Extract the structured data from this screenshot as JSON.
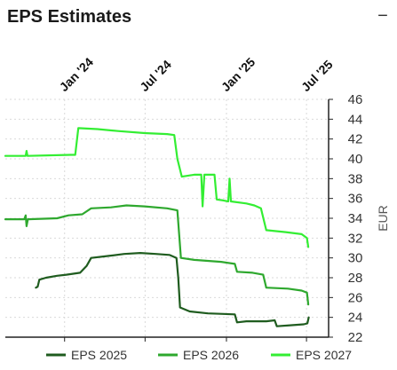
{
  "header": {
    "title": "EPS Estimates",
    "collapse_symbol": "−"
  },
  "chart_data": {
    "type": "line",
    "title": "EPS Estimates",
    "ylabel": "EUR",
    "ylim": [
      22,
      46
    ],
    "yticks": [
      22,
      24,
      26,
      28,
      30,
      32,
      34,
      36,
      38,
      40,
      42,
      44,
      46
    ],
    "x_range": [
      "2023-08-20",
      "2025-08-20"
    ],
    "xticks": [
      {
        "label": "Jan '24",
        "date": "2024-01-01"
      },
      {
        "label": "Jul '24",
        "date": "2024-07-01"
      },
      {
        "label": "Jan '25",
        "date": "2025-01-01"
      },
      {
        "label": "Jul '25",
        "date": "2025-07-01"
      }
    ],
    "grid": true,
    "legend_position": "bottom",
    "series": [
      {
        "name": "EPS 2025",
        "color": "#1f5c1f",
        "points": [
          [
            "2023-10-28",
            27.0
          ],
          [
            "2023-11-01",
            27.1
          ],
          [
            "2023-11-05",
            27.8
          ],
          [
            "2023-11-20",
            28.0
          ],
          [
            "2023-12-15",
            28.2
          ],
          [
            "2024-01-05",
            28.3
          ],
          [
            "2024-02-05",
            28.5
          ],
          [
            "2024-02-20",
            29.2
          ],
          [
            "2024-03-01",
            30.0
          ],
          [
            "2024-04-10",
            30.2
          ],
          [
            "2024-05-15",
            30.4
          ],
          [
            "2024-06-20",
            30.5
          ],
          [
            "2024-07-25",
            30.4
          ],
          [
            "2024-08-25",
            30.3
          ],
          [
            "2024-09-10",
            30.0
          ],
          [
            "2024-09-14",
            28.0
          ],
          [
            "2024-09-18",
            25.0
          ],
          [
            "2024-10-10",
            24.6
          ],
          [
            "2024-11-20",
            24.4
          ],
          [
            "2025-01-20",
            24.3
          ],
          [
            "2025-01-25",
            23.5
          ],
          [
            "2025-02-15",
            23.6
          ],
          [
            "2025-04-01",
            23.6
          ],
          [
            "2025-04-20",
            23.7
          ],
          [
            "2025-04-25",
            23.1
          ],
          [
            "2025-05-25",
            23.2
          ],
          [
            "2025-06-25",
            23.3
          ],
          [
            "2025-07-03",
            23.4
          ],
          [
            "2025-07-06",
            24.0
          ]
        ]
      },
      {
        "name": "EPS 2026",
        "color": "#2ea82e",
        "points": [
          [
            "2023-08-20",
            33.9
          ],
          [
            "2023-10-02",
            33.9
          ],
          [
            "2023-10-05",
            34.3
          ],
          [
            "2023-10-07",
            33.2
          ],
          [
            "2023-10-10",
            33.9
          ],
          [
            "2023-12-15",
            34.0
          ],
          [
            "2024-01-10",
            34.3
          ],
          [
            "2024-02-10",
            34.4
          ],
          [
            "2024-03-01",
            35.0
          ],
          [
            "2024-04-15",
            35.1
          ],
          [
            "2024-05-20",
            35.3
          ],
          [
            "2024-06-30",
            35.2
          ],
          [
            "2024-08-20",
            35.0
          ],
          [
            "2024-09-12",
            34.8
          ],
          [
            "2024-09-20",
            30.0
          ],
          [
            "2024-10-20",
            29.8
          ],
          [
            "2024-12-20",
            29.6
          ],
          [
            "2025-01-20",
            29.4
          ],
          [
            "2025-01-25",
            28.6
          ],
          [
            "2025-03-01",
            28.5
          ],
          [
            "2025-03-25",
            28.3
          ],
          [
            "2025-04-01",
            27.0
          ],
          [
            "2025-05-20",
            26.9
          ],
          [
            "2025-06-20",
            26.7
          ],
          [
            "2025-07-02",
            26.5
          ],
          [
            "2025-07-05",
            25.3
          ]
        ]
      },
      {
        "name": "EPS 2027",
        "color": "#33ee33",
        "points": [
          [
            "2023-08-20",
            40.3
          ],
          [
            "2023-10-05",
            40.3
          ],
          [
            "2023-10-07",
            40.8
          ],
          [
            "2023-10-09",
            40.3
          ],
          [
            "2024-01-15",
            40.4
          ],
          [
            "2024-01-25",
            40.4
          ],
          [
            "2024-02-01",
            43.1
          ],
          [
            "2024-03-15",
            43.0
          ],
          [
            "2024-05-01",
            42.8
          ],
          [
            "2024-06-30",
            42.6
          ],
          [
            "2024-08-20",
            42.5
          ],
          [
            "2024-09-05",
            42.4
          ],
          [
            "2024-09-12",
            40.0
          ],
          [
            "2024-09-22",
            38.2
          ],
          [
            "2024-10-20",
            38.4
          ],
          [
            "2024-11-05",
            38.4
          ],
          [
            "2024-11-08",
            35.2
          ],
          [
            "2024-11-12",
            38.4
          ],
          [
            "2024-12-05",
            38.4
          ],
          [
            "2024-12-10",
            35.9
          ],
          [
            "2024-12-25",
            35.8
          ],
          [
            "2025-01-05",
            35.7
          ],
          [
            "2025-01-08",
            38.0
          ],
          [
            "2025-01-11",
            35.7
          ],
          [
            "2025-02-15",
            35.5
          ],
          [
            "2025-03-05",
            35.3
          ],
          [
            "2025-03-20",
            35.0
          ],
          [
            "2025-04-01",
            32.8
          ],
          [
            "2025-05-15",
            32.6
          ],
          [
            "2025-06-20",
            32.4
          ],
          [
            "2025-07-02",
            32.0
          ],
          [
            "2025-07-05",
            31.1
          ]
        ]
      }
    ]
  }
}
